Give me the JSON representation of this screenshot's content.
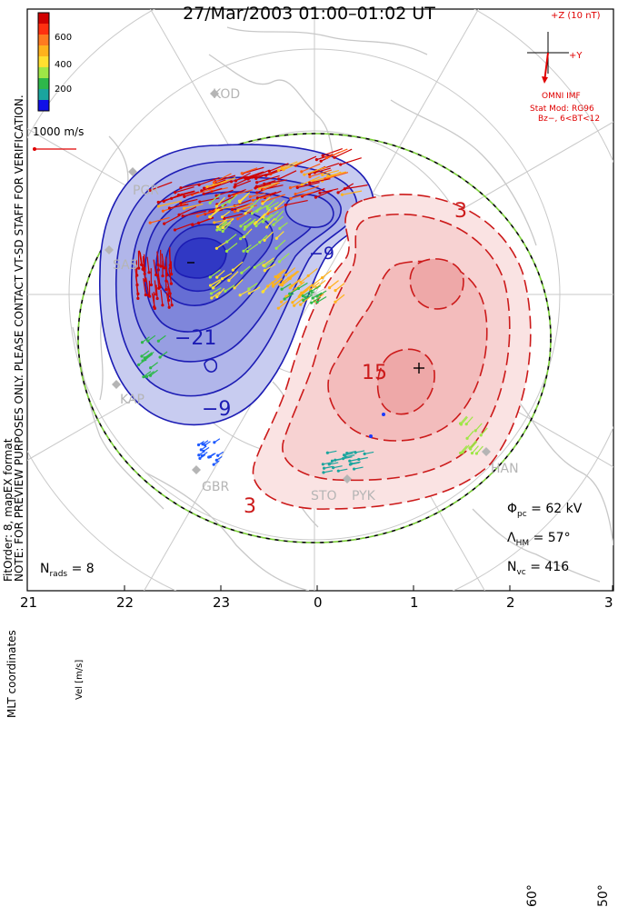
{
  "title": "27/Mar/2003 01:00–01:02 UT",
  "notes": {
    "line1": "NOTE: FOR PREVIEW PURPOSES ONLY. PLEASE CONTACT VT-SD STAFF FOR VERIFICATION.",
    "line2": "FitOrder: 8, mapEX format"
  },
  "coordinates_label": "MLT coordinates",
  "colorbar": {
    "label": "Vel [m/s]",
    "ticks": [
      "600",
      "400",
      "200"
    ],
    "colors": [
      "#d00000",
      "#ff5a10",
      "#ffb21c",
      "#ffe030",
      "#9ee646",
      "#2eb84a",
      "#1aa59e",
      "#1e5aff",
      "#1010e8"
    ]
  },
  "vector_scale": "1000 m/s",
  "imf": {
    "title": "+Z (10 nT)",
    "y_label": "+Y",
    "source": "OMNI IMF",
    "stat_model": "Stat Mod: RG96",
    "condition": "Bz−, 6<BT<12"
  },
  "stats": {
    "phi_symbol": "Φ",
    "phi_sub": "pc",
    "phi_value": "= 62 kV",
    "lambda_symbol": "Λ",
    "lambda_sub": "HM",
    "lambda_value": "= 57°",
    "nvc_symbol": "N",
    "nvc_sub": "vc",
    "nvc_value": "= 416",
    "nrads_symbol": "N",
    "nrads_sub": "rads",
    "nrads_value": "= 8"
  },
  "mlt_ticks": [
    "21",
    "22",
    "23",
    "0",
    "1",
    "2",
    "3"
  ],
  "lat_labels": [
    "60°",
    "50°"
  ],
  "contour_labels": {
    "negative": [
      "−21",
      "−9",
      "−9"
    ],
    "positive": [
      "3",
      "15",
      "3"
    ]
  },
  "stations": [
    "KOD",
    "PGR",
    "SAS",
    "KAP",
    "GBR",
    "STO",
    "PYK",
    "HAN"
  ],
  "colors": {
    "negative_fill": "#8e96e0",
    "negative_line": "#1c1cb4",
    "positive_fill": "#f0b8b8",
    "positive_line": "#cc1a1a",
    "station": "#b5b5b5",
    "coast": "#c8c8c8"
  }
}
